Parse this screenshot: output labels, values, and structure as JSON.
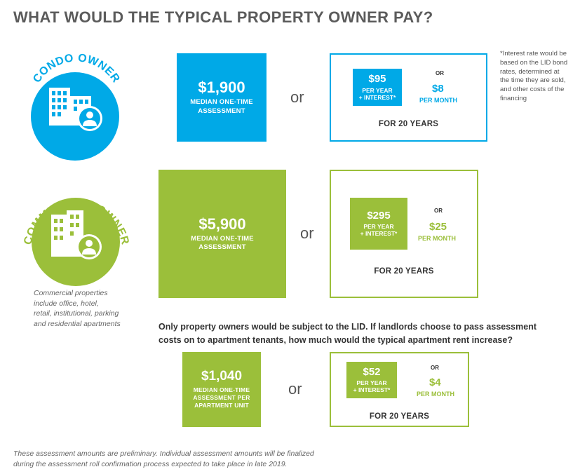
{
  "title": "WHAT WOULD THE TYPICAL PROPERTY OWNER PAY?",
  "colors": {
    "blue": "#00a9e7",
    "green": "#9bbf3a"
  },
  "condo": {
    "circle_label": "CONDO OWNER",
    "icon": "apartment-building-person-icon",
    "amount": "$1,900",
    "amount_label_1": "MEDIAN ONE-TIME",
    "amount_label_2": "ASSESSMENT",
    "or": "or",
    "per_year_amount": "$95",
    "per_year_label": "PER YEAR",
    "interest_label": "+ INTEREST*",
    "small_or": "OR",
    "per_month_amount": "$8",
    "per_month_label": "PER MONTH",
    "years": "FOR 20 YEARS",
    "footnote_lines": [
      "*Interest rate would be",
      "based on the LID bond",
      "rates, determined at",
      "the time they are sold,",
      "and other costs of the",
      "financing"
    ]
  },
  "commercial": {
    "circle_label": "COMMERCIAL OWNER",
    "icon": "office-building-person-icon",
    "amount": "$5,900",
    "amount_label_1": "MEDIAN ONE-TIME",
    "amount_label_2": "ASSESSMENT",
    "or": "or",
    "per_year_amount": "$295",
    "per_year_label": "PER YEAR",
    "interest_label": "+ INTEREST*",
    "small_or": "OR",
    "per_month_amount": "$25",
    "per_month_label": "PER MONTH",
    "years": "FOR 20 YEARS",
    "note_lines": [
      "Commercial properties",
      "include office, hotel,",
      "retail, institutional, parking",
      "and residential apartments"
    ]
  },
  "apartment": {
    "question_lines": [
      "Only property owners would be subject to the LID. If landlords choose to pass assessment",
      "costs on to apartment tenants, how much would the typical apartment rent increase?"
    ],
    "amount": "$1,040",
    "amount_label_1": "MEDIAN ONE-TIME",
    "amount_label_2": "ASSESSMENT PER",
    "amount_label_3": "APARTMENT UNIT",
    "or": "or",
    "per_year_amount": "$52",
    "per_year_label": "PER YEAR",
    "interest_label": "+ INTEREST*",
    "small_or": "OR",
    "per_month_amount": "$4",
    "per_month_label": "PER MONTH",
    "years": "FOR 20 YEARS"
  },
  "footer_lines": [
    "These assessment amounts are preliminary. Individual  assessment amounts will be finalized",
    "during the assessment roll confirmation process expected to take place in late 2019."
  ]
}
